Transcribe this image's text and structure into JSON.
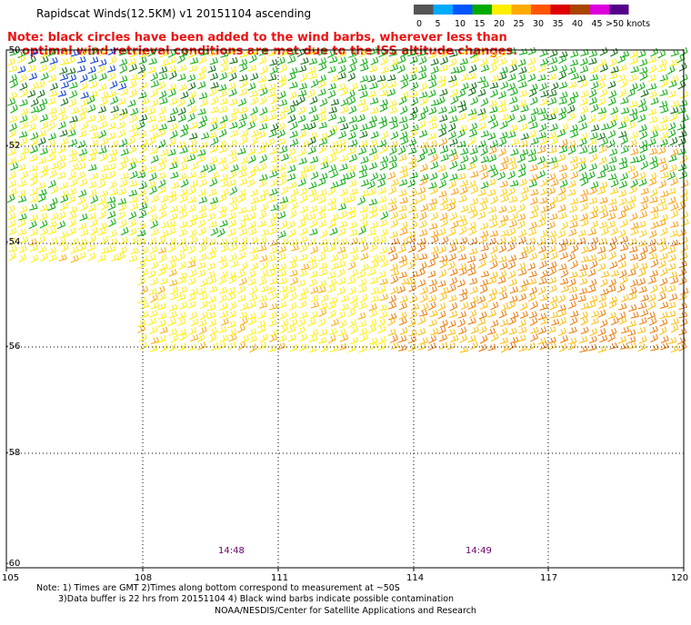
{
  "header": {
    "title": "Rapidscat Winds(12.5KM) v1 20151104 ascending"
  },
  "note": {
    "line1": "Note: black circles have been added to the wind barbs, wherever less than",
    "line2": "optimal wind retrieval conditions are met due to the ISS altitude changes."
  },
  "legend": {
    "labels": [
      "0",
      "5",
      "10",
      "15",
      "20",
      "25",
      "30",
      "35",
      "40",
      "45",
      ">50 knots"
    ],
    "colors": [
      "#555555",
      "#00aaff",
      "#0055ff",
      "#00aa00",
      "#ffee00",
      "#ffaa00",
      "#ff5500",
      "#dd0000",
      "#aa4400",
      "#dd00dd",
      "#550088"
    ]
  },
  "map": {
    "lat_labels": [
      "-50",
      "-52",
      "-54",
      "-56",
      "-58",
      "-60"
    ],
    "lon_labels": [
      "105",
      "108",
      "111",
      "114",
      "117",
      "120"
    ],
    "lat_range": [
      -60,
      -50
    ],
    "lon_range": [
      105,
      120
    ],
    "time_labels": [
      "14:48",
      "14:49"
    ],
    "grid": "dotted"
  },
  "footer": {
    "line1": "Note: 1) Times are GMT 2)Times along bottom correspond to measurement at ~50S",
    "line2": "3)Data buffer is 22 hrs from 20151104 4) Black wind barbs indicate possible contamination",
    "credit": "NOAA/NESDIS/Center for Satellite Applications and Research"
  }
}
